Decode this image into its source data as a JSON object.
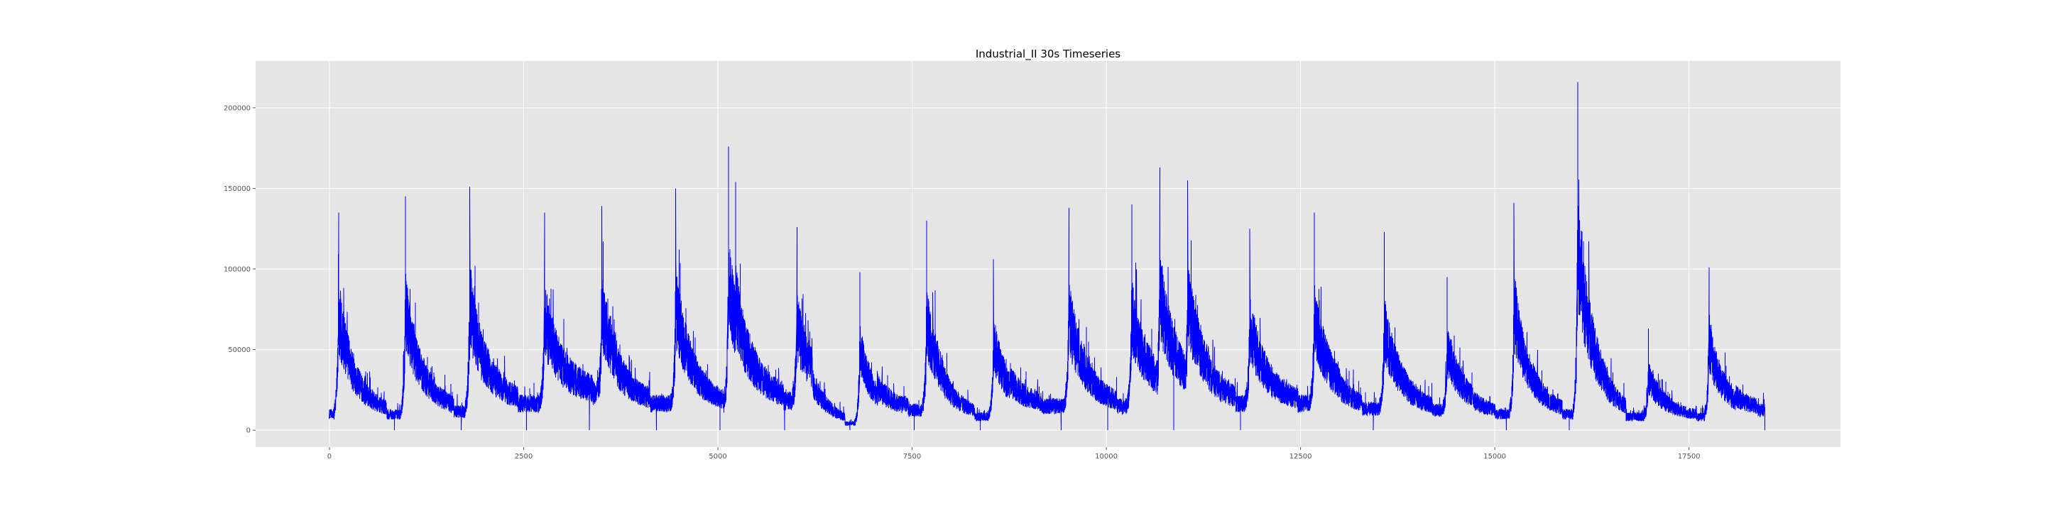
{
  "chart_data": {
    "type": "line",
    "title": "Industrial_II 30s Timeseries",
    "xlabel": "",
    "ylabel": "",
    "xlim": [
      -950,
      19450
    ],
    "ylim": [
      -10500,
      229000
    ],
    "x_ticks": [
      0,
      2500,
      5000,
      7500,
      10000,
      12500,
      15000,
      17500
    ],
    "y_ticks": [
      0,
      50000,
      100000,
      150000,
      200000
    ],
    "grid": true,
    "legend": "none",
    "colors": {
      "line": "#0000ff",
      "plot_background": "#e5e5e5",
      "grid": "#ffffff",
      "tick_label": "#555555",
      "page_background": "#ffffff"
    },
    "series": [
      {
        "x_range": [
          0,
          18480
        ],
        "step": 1,
        "point_count": 18481,
        "day_length": 865,
        "spikes_to_zero_at": [
          840,
          1700,
          2540,
          3350,
          4210,
          5030,
          5860,
          6700,
          7530,
          8380,
          9420,
          10020,
          10870,
          11730,
          13440,
          15150,
          15960,
          18480
        ],
        "daily_peaks": [
          {
            "x": 120,
            "y": 135000
          },
          {
            "x": 980,
            "y": 145000
          },
          {
            "x": 1810,
            "y": 151000
          },
          {
            "x": 2770,
            "y": 135000
          },
          {
            "x": 3510,
            "y": 139000
          },
          {
            "x": 4460,
            "y": 150000
          },
          {
            "x": 5140,
            "y": 176000
          },
          {
            "x": 5230,
            "y": 154000
          },
          {
            "x": 6020,
            "y": 126000
          },
          {
            "x": 6830,
            "y": 98000
          },
          {
            "x": 7690,
            "y": 130000
          },
          {
            "x": 8550,
            "y": 106000
          },
          {
            "x": 9520,
            "y": 138000
          },
          {
            "x": 10330,
            "y": 140000
          },
          {
            "x": 10690,
            "y": 163000
          },
          {
            "x": 11050,
            "y": 155000
          },
          {
            "x": 11850,
            "y": 125000
          },
          {
            "x": 12680,
            "y": 135000
          },
          {
            "x": 13580,
            "y": 123000
          },
          {
            "x": 14390,
            "y": 95000
          },
          {
            "x": 15250,
            "y": 141000
          },
          {
            "x": 16070,
            "y": 216000
          },
          {
            "x": 16980,
            "y": 63000
          },
          {
            "x": 17760,
            "y": 101000
          }
        ],
        "daily_baseline_lows": [
          {
            "x": 700,
            "y": 12000
          },
          {
            "x": 1560,
            "y": 14000
          },
          {
            "x": 2420,
            "y": 20000
          },
          {
            "x": 3280,
            "y": 28000
          },
          {
            "x": 4120,
            "y": 20000
          },
          {
            "x": 4960,
            "y": 18000
          },
          {
            "x": 5800,
            "y": 22000
          },
          {
            "x": 6640,
            "y": 5000
          },
          {
            "x": 7480,
            "y": 15000
          },
          {
            "x": 8320,
            "y": 10000
          },
          {
            "x": 9200,
            "y": 18000
          },
          {
            "x": 10060,
            "y": 18000
          },
          {
            "x": 10900,
            "y": 25000
          },
          {
            "x": 11740,
            "y": 20000
          },
          {
            "x": 12600,
            "y": 20000
          },
          {
            "x": 13440,
            "y": 16000
          },
          {
            "x": 14300,
            "y": 15000
          },
          {
            "x": 15160,
            "y": 12000
          },
          {
            "x": 16020,
            "y": 12000
          },
          {
            "x": 16880,
            "y": 10000
          },
          {
            "x": 17720,
            "y": 10000
          },
          {
            "x": 18480,
            "y": 15000
          }
        ]
      }
    ]
  }
}
